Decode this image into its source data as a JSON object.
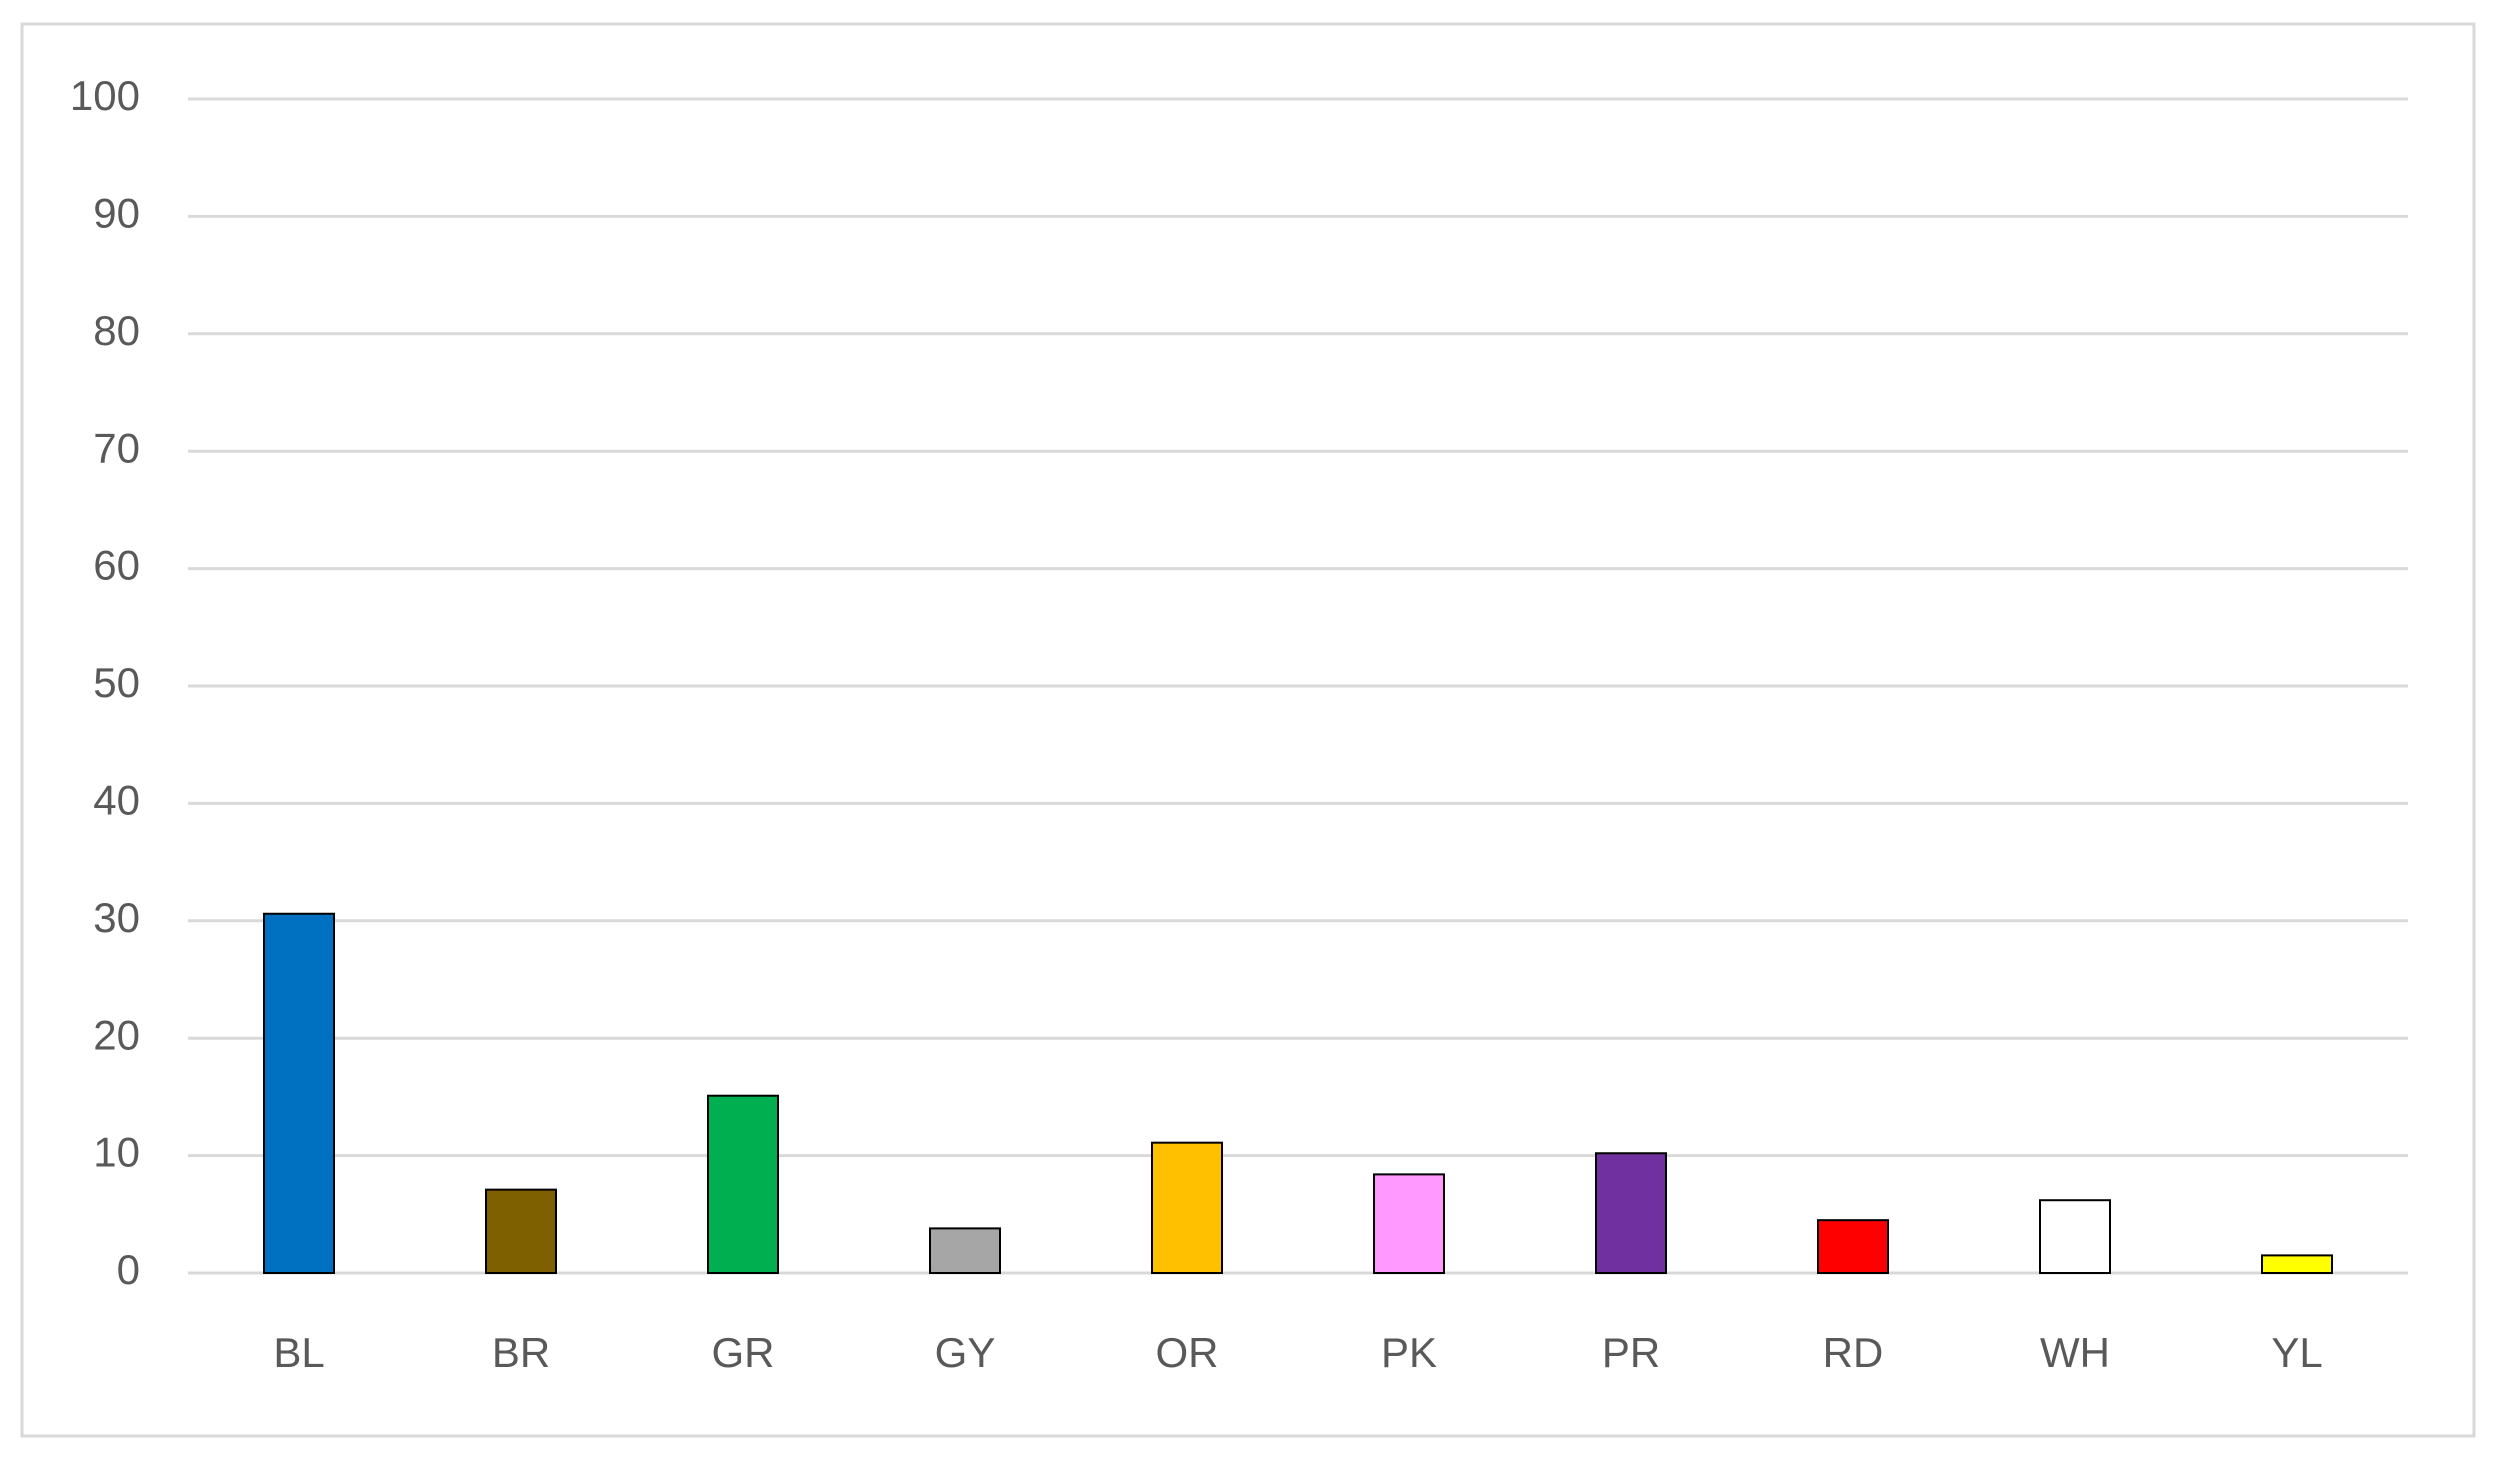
{
  "chart_data": {
    "type": "bar",
    "categories": [
      "BL",
      "BR",
      "GR",
      "GY",
      "OR",
      "PK",
      "PR",
      "RD",
      "WH",
      "YL"
    ],
    "values": [
      30.6,
      7.1,
      15.1,
      3.8,
      11.1,
      8.4,
      10.2,
      4.5,
      6.2,
      1.5
    ],
    "colors": [
      "#0070c0",
      "#7f6000",
      "#00b050",
      "#a6a6a6",
      "#ffc000",
      "#ff99ff",
      "#7030a0",
      "#ff0000",
      "#ffffff",
      "#ffff00"
    ],
    "ylim": [
      0,
      100
    ],
    "yticks": [
      0,
      10,
      20,
      30,
      40,
      50,
      60,
      70,
      80,
      90,
      100
    ],
    "grid": true
  }
}
